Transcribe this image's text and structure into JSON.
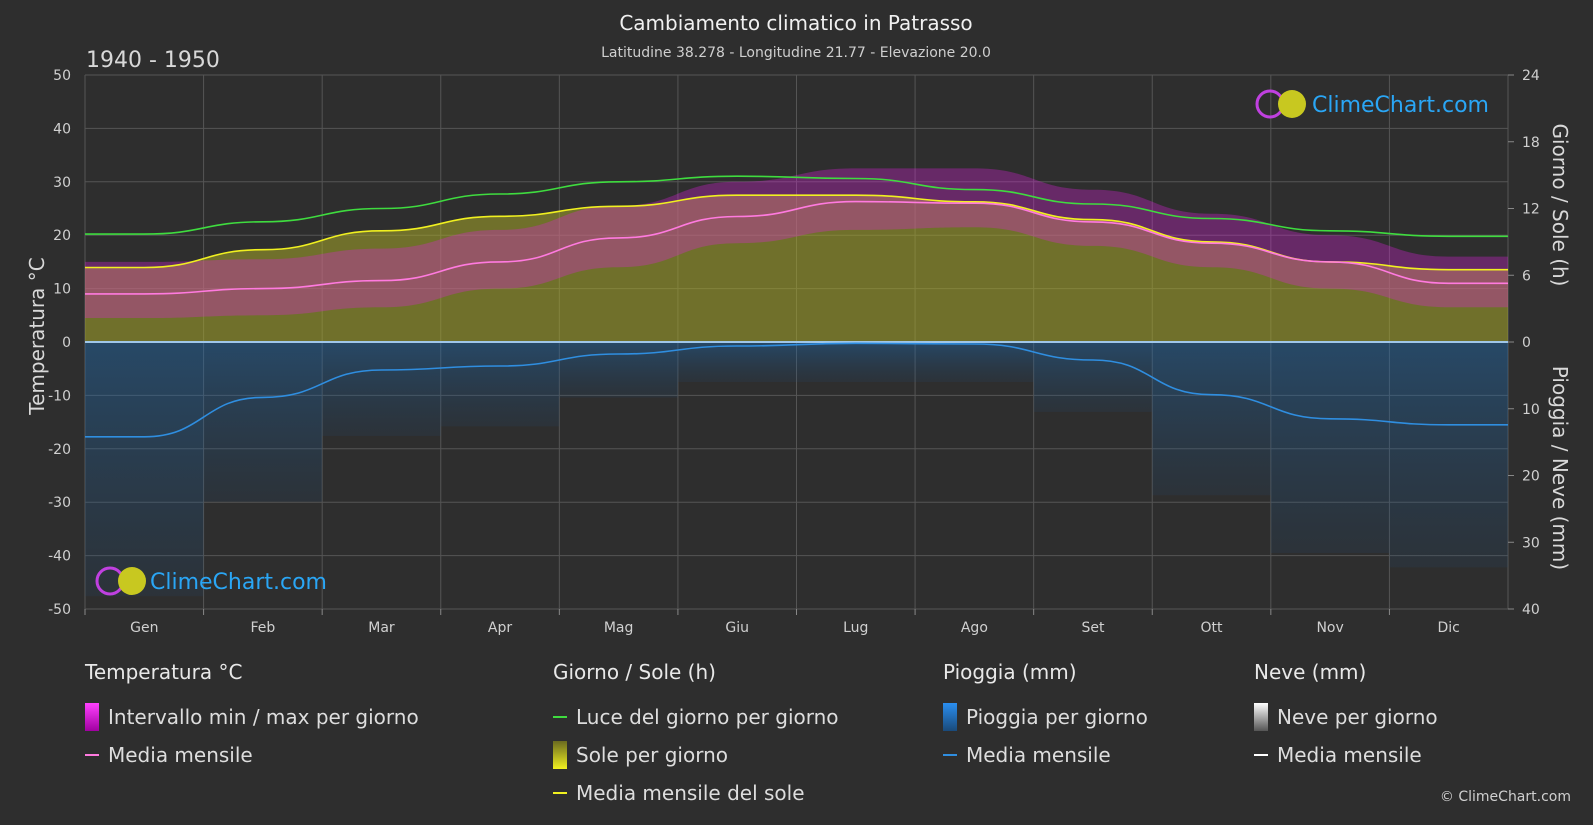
{
  "header": {
    "title": "Cambiamento climatico in Patrasso",
    "subtitle": "Latitudine 38.278 - Longitudine 21.77 - Elevazione 20.0",
    "period": "1940 - 1950"
  },
  "logo_text": "ClimeChart.com",
  "copyright": "© ClimeChart.com",
  "colors": {
    "background": "#2e2e2e",
    "temp_range": "#e020e0",
    "temp_mean": "#ff7adf",
    "daylight": "#3fdc3f",
    "sunshine": "#a8a82a",
    "sun_mean": "#f0f020",
    "rain": "#1d78c8",
    "rain_mean": "#2f8ee0",
    "snow_mean": "#ffffff"
  },
  "chart_data": {
    "type": "area",
    "months": [
      "Gen",
      "Feb",
      "Mar",
      "Apr",
      "Mag",
      "Giu",
      "Lug",
      "Ago",
      "Set",
      "Ott",
      "Nov",
      "Dic"
    ],
    "left_axis": {
      "label": "Temperatura °C",
      "min": -50,
      "max": 50,
      "ticks": [
        50,
        40,
        30,
        20,
        10,
        0,
        -10,
        -20,
        -30,
        -40,
        -50
      ]
    },
    "right_axis_top": {
      "label": "Giorno / Sole (h)",
      "min": 0,
      "max": 24,
      "ticks": [
        24,
        18,
        12,
        6,
        0
      ]
    },
    "right_axis_bottom": {
      "label": "Pioggia / Neve (mm)",
      "min": 0,
      "max": 40,
      "ticks": [
        0,
        10,
        20,
        30,
        40
      ]
    },
    "grid": true,
    "series": [
      {
        "name": "Luce del giorno per giorno",
        "unit": "h",
        "values": [
          9.7,
          10.8,
          12.0,
          13.3,
          14.4,
          14.9,
          14.7,
          13.7,
          12.4,
          11.1,
          10.0,
          9.5
        ]
      },
      {
        "name": "Media mensile del sole",
        "unit": "h",
        "values": [
          6.7,
          8.3,
          10.0,
          11.3,
          12.2,
          13.2,
          13.2,
          12.6,
          11.0,
          9.0,
          7.2,
          6.5
        ]
      },
      {
        "name": "Media mensile",
        "group": "Temperatura °C",
        "values": [
          9.0,
          10.0,
          11.5,
          15.0,
          19.5,
          23.5,
          26.3,
          26.0,
          22.5,
          18.5,
          15.0,
          11.0
        ]
      },
      {
        "name": "Intervallo min / max per giorno",
        "group": "Temperatura °C",
        "min": [
          4.5,
          5.0,
          6.5,
          10.0,
          14.0,
          18.5,
          21.0,
          21.5,
          18.0,
          14.0,
          10.0,
          6.5
        ],
        "max": [
          15.0,
          15.5,
          17.5,
          21.0,
          25.5,
          30.0,
          32.5,
          32.5,
          28.5,
          24.0,
          20.0,
          16.0
        ]
      },
      {
        "name": "Media mensile",
        "group": "Pioggia (mm)",
        "values": [
          14.2,
          8.3,
          4.2,
          3.6,
          1.8,
          0.6,
          0.2,
          0.3,
          2.7,
          7.9,
          11.5,
          12.4
        ]
      },
      {
        "name": "Media mensile",
        "group": "Neve (mm)",
        "values": [
          0,
          0,
          0,
          0,
          0,
          0,
          0,
          0,
          0,
          0,
          0,
          0
        ]
      }
    ]
  },
  "legend": {
    "temperature": {
      "title": "Temperatura °C",
      "range": "Intervallo min / max per giorno",
      "mean": "Media mensile"
    },
    "daysun": {
      "title": "Giorno / Sole (h)",
      "daylight": "Luce del giorno per giorno",
      "sun": "Sole per giorno",
      "sun_mean": "Media mensile del sole"
    },
    "rain": {
      "title": "Pioggia (mm)",
      "daily": "Pioggia per giorno",
      "mean": "Media mensile"
    },
    "snow": {
      "title": "Neve (mm)",
      "daily": "Neve per giorno",
      "mean": "Media mensile"
    }
  }
}
